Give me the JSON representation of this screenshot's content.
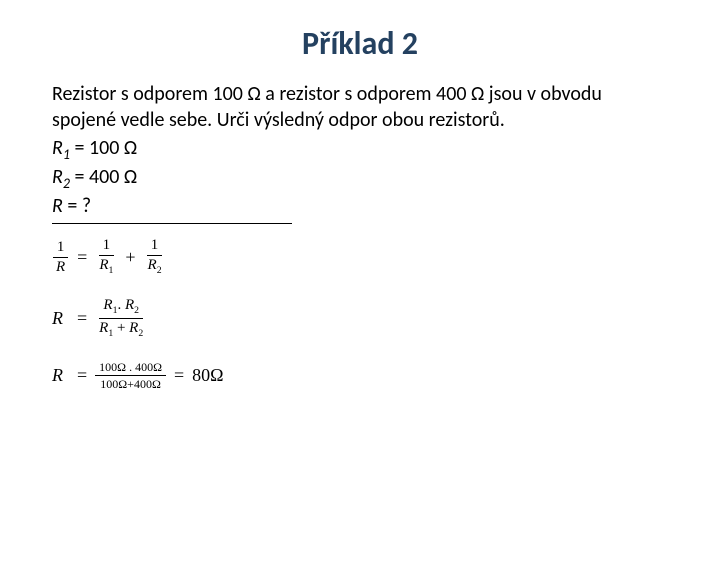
{
  "title": "Příklad 2",
  "problem_text": "Rezistor  s odporem 100 Ω a rezistor s odporem 400 Ω jsou v obvodu spojené vedle sebe. Urči výsledný odpor obou rezistorů.",
  "r1_label": "R",
  "r1_sub": "1",
  "r1_val": " = 100 Ω",
  "r2_label": "R",
  "r2_sub": "2",
  "r2_val": " = 400 Ω",
  "r_label": "R",
  "r_q": " = ?",
  "eq1": {
    "lhs_num": "1",
    "lhs_den": "R",
    "eq": "=",
    "t1_num": "1",
    "t1_den_R": "R",
    "t1_den_sub": "1",
    "plus": "+",
    "t2_num": "1",
    "t2_den_R": "R",
    "t2_den_sub": "2"
  },
  "eq2": {
    "lhs": "R",
    "eq": "=",
    "num_a": "R",
    "num_a_sub": "1",
    "dot": ". ",
    "num_b": "R",
    "num_b_sub": "2",
    "den_a": "R",
    "den_a_sub": "1",
    "plus": " + ",
    "den_b": "R",
    "den_b_sub": "2"
  },
  "eq3": {
    "lhs": "R",
    "eq": "=",
    "num": "100Ω . 400Ω",
    "den": "100Ω+400Ω",
    "eq2": "=",
    "result": "80Ω"
  }
}
